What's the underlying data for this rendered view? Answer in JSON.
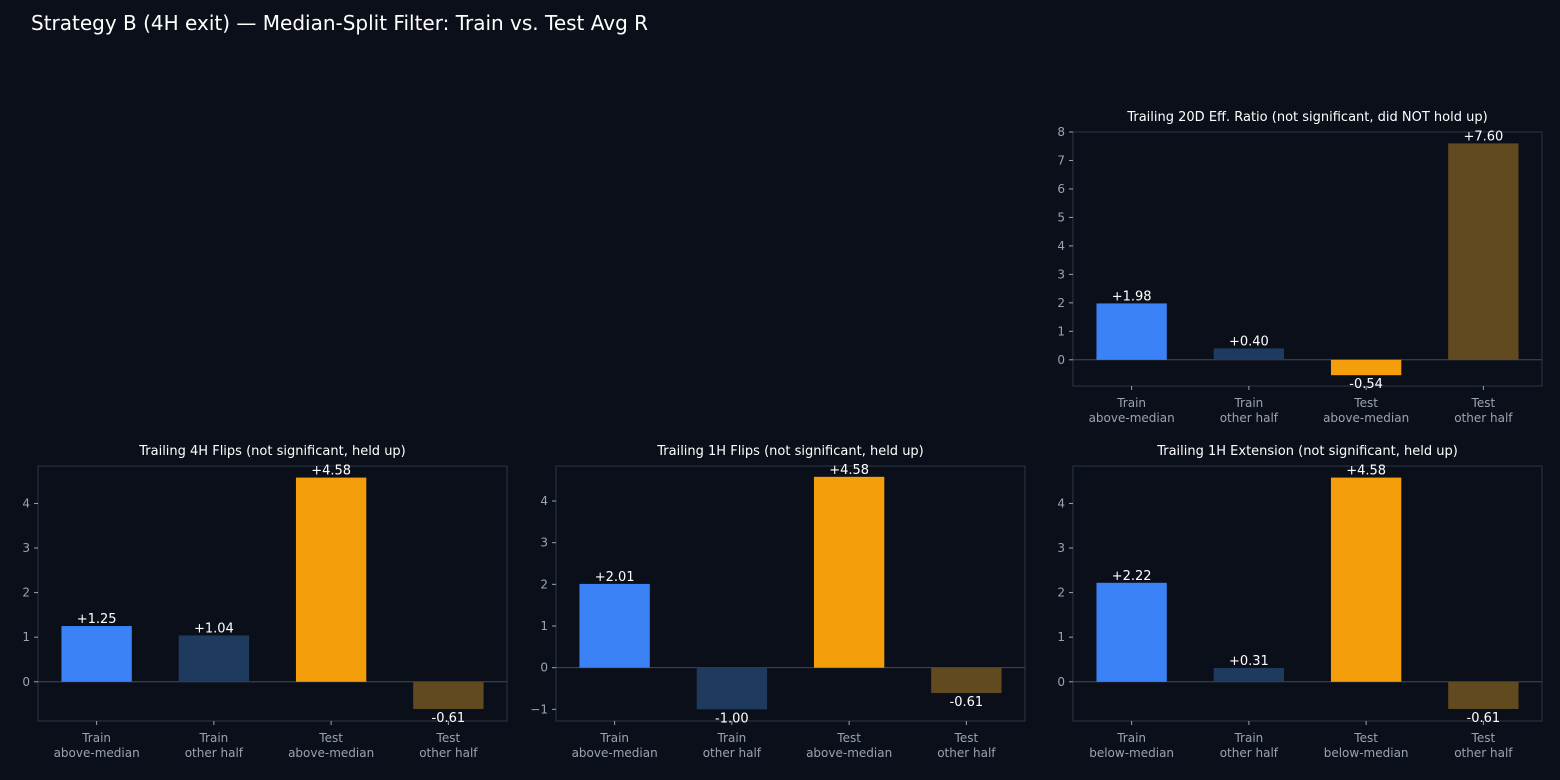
{
  "page_title": "Strategy B (4H exit) — Median-Split Filter: Train vs. Test Avg R",
  "colors": {
    "background": "#0b0f19",
    "train_selected": "#3b82f6",
    "train_other": "#1e3a5f",
    "test_selected": "#f59e0b",
    "test_other": "#614a1f",
    "axis": "#2d3748",
    "tick_text": "#9aa3b2",
    "text": "#ffffff"
  },
  "chart_data": [
    {
      "type": "bar",
      "title": "Trailing 20D Eff. Ratio (not significant, did NOT hold up)",
      "categories": [
        [
          "Train",
          "above-median"
        ],
        [
          "Train",
          "other half"
        ],
        [
          "Test",
          "above-median"
        ],
        [
          "Test",
          "other half"
        ]
      ],
      "values": [
        1.98,
        0.4,
        -0.54,
        7.6
      ],
      "value_labels": [
        "+1.98",
        "+0.40",
        "-0.54",
        "+7.60"
      ],
      "yticks": [
        0,
        1,
        2,
        3,
        4,
        5,
        6,
        7,
        8
      ],
      "ylim": [
        -0.92,
        8.0
      ],
      "xlabel": "",
      "ylabel": "",
      "grid": false
    },
    {
      "type": "bar",
      "title": "Trailing 4H Flips (not significant, held up)",
      "categories": [
        [
          "Train",
          "above-median"
        ],
        [
          "Train",
          "other half"
        ],
        [
          "Test",
          "above-median"
        ],
        [
          "Test",
          "other half"
        ]
      ],
      "values": [
        1.25,
        1.04,
        4.58,
        -0.61
      ],
      "value_labels": [
        "+1.25",
        "+1.04",
        "+4.58",
        "-0.61"
      ],
      "yticks": [
        0,
        1,
        2,
        3,
        4
      ],
      "ylim": [
        -0.88,
        4.84
      ],
      "xlabel": "",
      "ylabel": "",
      "grid": false
    },
    {
      "type": "bar",
      "title": "Trailing 1H Flips (not significant, held up)",
      "categories": [
        [
          "Train",
          "above-median"
        ],
        [
          "Train",
          "other half"
        ],
        [
          "Test",
          "above-median"
        ],
        [
          "Test",
          "other half"
        ]
      ],
      "values": [
        2.01,
        -1.0,
        4.58,
        -0.61
      ],
      "value_labels": [
        "+2.01",
        "-1.00",
        "+4.58",
        "-0.61"
      ],
      "yticks": [
        -1,
        0,
        1,
        2,
        3,
        4
      ],
      "ylim": [
        -1.28,
        4.84
      ],
      "xlabel": "",
      "ylabel": "",
      "grid": false
    },
    {
      "type": "bar",
      "title": "Trailing 1H Extension (not significant, held up)",
      "categories": [
        [
          "Train",
          "below-median"
        ],
        [
          "Train",
          "other half"
        ],
        [
          "Test",
          "below-median"
        ],
        [
          "Test",
          "other half"
        ]
      ],
      "values": [
        2.22,
        0.31,
        4.58,
        -0.61
      ],
      "value_labels": [
        "+2.22",
        "+0.31",
        "+4.58",
        "-0.61"
      ],
      "yticks": [
        0,
        1,
        2,
        3,
        4
      ],
      "ylim": [
        -0.88,
        4.84
      ],
      "xlabel": "",
      "ylabel": "",
      "grid": false
    }
  ]
}
